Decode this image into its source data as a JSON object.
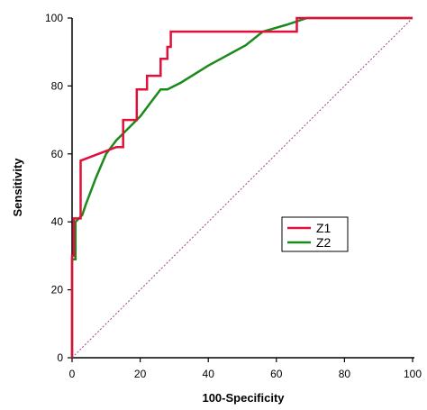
{
  "chart_data": {
    "type": "line",
    "title": "",
    "xlabel": "100-Specificity",
    "ylabel": "Sensitivity",
    "xlim": [
      0,
      100
    ],
    "ylim": [
      0,
      100
    ],
    "xticks": [
      0,
      20,
      40,
      60,
      80,
      100
    ],
    "yticks": [
      0,
      20,
      40,
      60,
      80,
      100
    ],
    "grid": false,
    "legend_position": "center-right",
    "series": [
      {
        "name": "Z1",
        "color": "#e0103a",
        "x": [
          0,
          0,
          0.5,
          0.5,
          1.5,
          1.5,
          2.5,
          2.5,
          13,
          13,
          15,
          15,
          17,
          17,
          19,
          19,
          20.5,
          20.5,
          22,
          22,
          26,
          26,
          28,
          28,
          29,
          29,
          64,
          64,
          66,
          66,
          100
        ],
        "y": [
          0,
          30,
          30,
          41,
          41,
          41,
          41,
          58,
          62,
          62,
          62,
          70,
          70,
          70,
          70,
          79,
          79,
          79,
          79,
          83,
          83,
          88,
          88,
          91.5,
          91.5,
          96,
          96,
          96,
          96,
          100,
          100
        ]
      },
      {
        "name": "Z2",
        "color": "#1a8a1a",
        "x": [
          0,
          0,
          1,
          1,
          3,
          4,
          7,
          10,
          13,
          16,
          20,
          23,
          26,
          28,
          32,
          40,
          51,
          56,
          63,
          69,
          70,
          100
        ],
        "y": [
          0,
          29,
          29,
          40,
          42,
          45,
          53,
          60,
          64,
          67,
          71,
          75,
          79,
          79,
          81,
          86,
          92,
          96,
          98,
          100,
          100,
          100
        ]
      }
    ],
    "reference_line": {
      "x": [
        0,
        100
      ],
      "y": [
        0,
        100
      ],
      "color": "#a0408a"
    }
  }
}
